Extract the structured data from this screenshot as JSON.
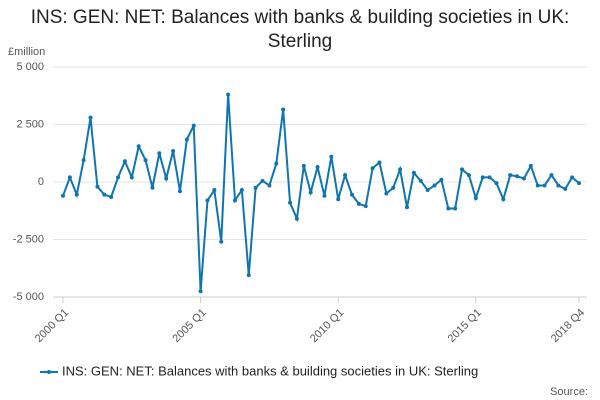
{
  "chart_data": {
    "type": "line",
    "title": "INS: GEN: NET: Balances with banks & building societies in UK: Sterling",
    "y_unit_label": "£million",
    "source_label": "Source:",
    "categories": [
      "2000 Q1",
      null,
      null,
      null,
      null,
      null,
      null,
      null,
      null,
      null,
      null,
      null,
      null,
      null,
      null,
      null,
      null,
      null,
      null,
      null,
      "2005 Q1",
      null,
      null,
      null,
      null,
      null,
      null,
      null,
      null,
      null,
      null,
      null,
      null,
      null,
      null,
      null,
      null,
      null,
      null,
      null,
      "2010 Q1",
      null,
      null,
      null,
      null,
      null,
      null,
      null,
      null,
      null,
      null,
      null,
      null,
      null,
      null,
      null,
      null,
      null,
      null,
      null,
      "2015 Q1",
      null,
      null,
      null,
      null,
      null,
      null,
      null,
      null,
      null,
      null,
      null,
      null,
      null,
      null,
      "2018 Q4"
    ],
    "series": [
      {
        "name": "INS: GEN: NET: Balances with banks & building societies in UK: Sterling",
        "color": "#0f75b0",
        "values": [
          -600,
          200,
          -550,
          950,
          2800,
          -200,
          -550,
          -650,
          200,
          900,
          200,
          1550,
          950,
          -250,
          1250,
          150,
          1350,
          -400,
          1850,
          2450,
          -4750,
          -800,
          -350,
          -2600,
          3800,
          -800,
          -350,
          -4050,
          -250,
          50,
          -150,
          800,
          3150,
          -900,
          -1600,
          700,
          -450,
          650,
          -600,
          1100,
          -750,
          300,
          -550,
          -950,
          -1050,
          600,
          850,
          -500,
          -250,
          550,
          -1100,
          400,
          50,
          -350,
          -150,
          100,
          -1150,
          -1150,
          550,
          300,
          -700,
          200,
          200,
          -50,
          -750,
          300,
          250,
          150,
          700,
          -150,
          -150,
          300,
          -150,
          -300,
          200,
          -50
        ]
      }
    ],
    "ylim": [
      -5000,
      5000
    ],
    "yticks": [
      {
        "value": -5000,
        "label": "-5 000"
      },
      {
        "value": -2500,
        "label": "-2 500"
      },
      0,
      {
        "value": 2500,
        "label": "2 500"
      },
      {
        "value": 5000,
        "label": "5 000"
      }
    ],
    "grid": true,
    "legend": "bottom"
  }
}
